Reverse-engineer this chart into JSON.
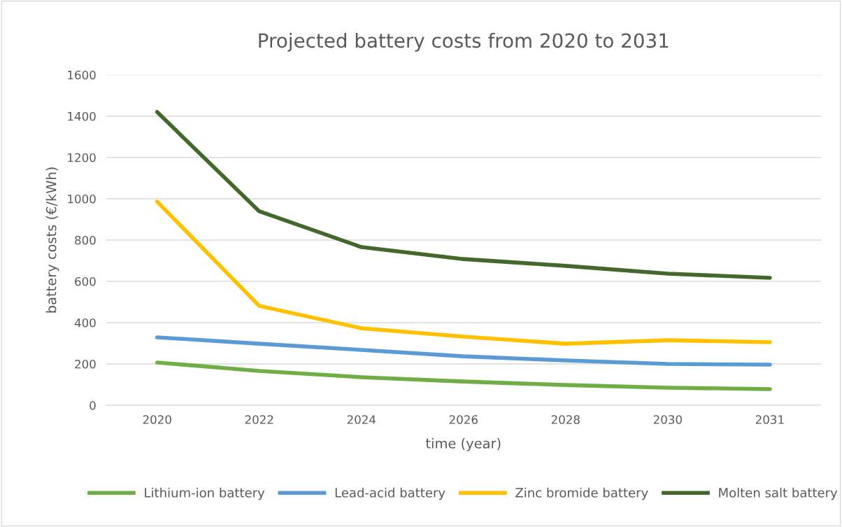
{
  "chart_data": {
    "type": "line",
    "title": "Projected battery costs from 2020 to 2031",
    "xlabel": "time (year)",
    "ylabel": "battery costs (€/kWh)",
    "categories": [
      "2020",
      "2022",
      "2024",
      "2026",
      "2028",
      "2030",
      "2031"
    ],
    "series": [
      {
        "name": "Lithium-ion battery",
        "color": "#70ad47",
        "values": [
          207,
          166,
          136,
          115,
          98,
          85,
          78
        ]
      },
      {
        "name": "Lead-acid battery",
        "color": "#5b9bd5",
        "values": [
          329,
          298,
          268,
          237,
          217,
          200,
          197
        ]
      },
      {
        "name": "Zinc bromide battery",
        "color": "#ffc000",
        "values": [
          986,
          481,
          373,
          332,
          298,
          315,
          305
        ]
      },
      {
        "name": "Molten salt battery",
        "color": "#43682b",
        "values": [
          1420,
          939,
          766,
          708,
          675,
          637,
          617
        ]
      }
    ],
    "ylim": [
      0,
      1600
    ],
    "yticks": [
      0,
      200,
      400,
      600,
      800,
      1000,
      1200,
      1400,
      1600
    ],
    "grid": "y",
    "legend": "bottom",
    "marker": "none",
    "line_style": "solid"
  }
}
